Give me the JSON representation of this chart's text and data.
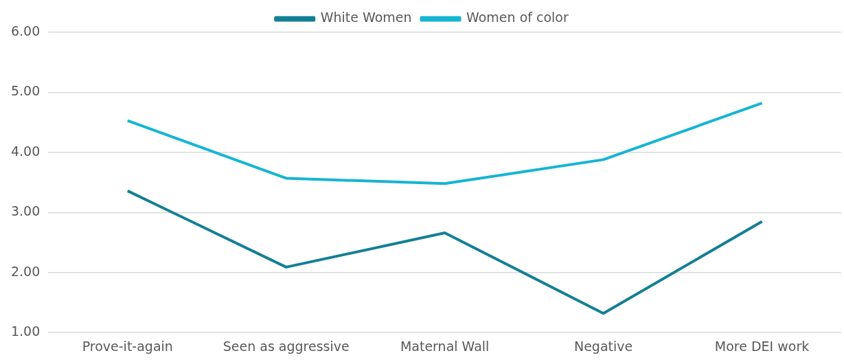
{
  "chart_data": {
    "type": "line",
    "categories": [
      "Prove-it-again",
      "Seen as aggressive",
      "Maternal Wall",
      "Negative",
      "More DEI work"
    ],
    "series": [
      {
        "name": "White Women",
        "color": "#137f95",
        "values": [
          3.36,
          2.09,
          2.66,
          1.32,
          2.85
        ]
      },
      {
        "name": "Women of color",
        "color": "#15b5d3",
        "values": [
          4.53,
          3.57,
          3.48,
          3.88,
          4.82
        ]
      }
    ],
    "ylim": [
      1,
      6
    ],
    "yticks": [
      {
        "value": 1,
        "label": "1.00"
      },
      {
        "value": 2,
        "label": "2.00"
      },
      {
        "value": 3,
        "label": "3.00"
      },
      {
        "value": 4,
        "label": "4.00"
      },
      {
        "value": 5,
        "label": "5.00"
      },
      {
        "value": 6,
        "label": "6.00"
      }
    ],
    "grid": "y",
    "legend": "top",
    "marker": "none",
    "line_style": "solid"
  }
}
